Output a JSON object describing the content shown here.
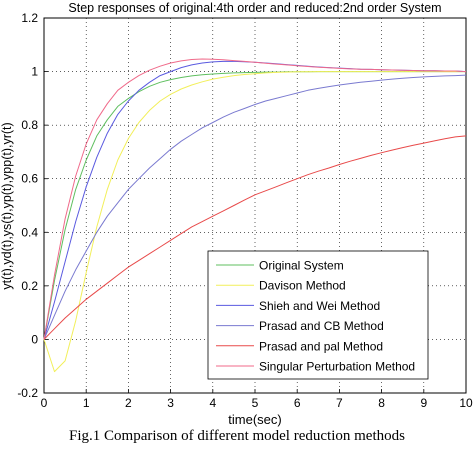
{
  "caption": "Fig.1 Comparison of different model reduction methods",
  "chart_data": {
    "type": "line",
    "title": "Step responses of original:4th order and reduced:2nd order System",
    "xlabel": "time(sec)",
    "ylabel": "yt(t),yd(t),ys(t),yp(t),ypp(t),yr(t)",
    "xlim": [
      0,
      10
    ],
    "ylim": [
      -0.2,
      1.2
    ],
    "xticks": [
      "0",
      "1",
      "2",
      "3",
      "4",
      "5",
      "6",
      "7",
      "8",
      "9",
      "10"
    ],
    "yticks": [
      "-0.2",
      "0",
      "0.2",
      "0.4",
      "0.6",
      "0.8",
      "1",
      "1.2"
    ],
    "grid": true,
    "legend_position": "bottom-right",
    "x": [
      0,
      0.25,
      0.5,
      0.75,
      1,
      1.25,
      1.5,
      1.75,
      2,
      2.25,
      2.5,
      2.75,
      3,
      3.25,
      3.5,
      3.75,
      4,
      4.25,
      4.5,
      4.75,
      5,
      5.25,
      5.5,
      5.75,
      6,
      6.25,
      6.5,
      6.75,
      7,
      7.25,
      7.5,
      7.75,
      8,
      8.25,
      8.5,
      8.75,
      9,
      9.25,
      9.5,
      9.75,
      10
    ],
    "series": [
      {
        "name": "Original System",
        "color": "#5fbf5f",
        "values": [
          0.0,
          0.22,
          0.41,
          0.56,
          0.67,
          0.76,
          0.82,
          0.87,
          0.9,
          0.925,
          0.945,
          0.96,
          0.97,
          0.978,
          0.984,
          0.988,
          0.991,
          0.993,
          0.995,
          0.996,
          0.997,
          0.998,
          0.998,
          0.999,
          0.999,
          0.999,
          1.0,
          1.0,
          1.0,
          1.0,
          1.0,
          1.0,
          1.0,
          1.0,
          1.0,
          1.0,
          1.0,
          1.0,
          1.0,
          1.0,
          1.0
        ]
      },
      {
        "name": "Davison Method",
        "color": "#f2ef5a",
        "values": [
          0.0,
          -0.12,
          -0.08,
          0.07,
          0.25,
          0.42,
          0.56,
          0.67,
          0.75,
          0.81,
          0.855,
          0.89,
          0.915,
          0.935,
          0.95,
          0.962,
          0.972,
          0.979,
          0.985,
          0.989,
          0.992,
          0.995,
          0.997,
          0.998,
          0.999,
          0.999,
          1.0,
          1.0,
          1.0,
          1.0,
          1.0,
          1.0,
          1.0,
          1.0,
          1.0,
          1.0,
          1.0,
          1.0,
          1.0,
          1.0,
          1.0
        ]
      },
      {
        "name": "Shieh and Wei Method",
        "color": "#5a5ae0",
        "values": [
          0.0,
          0.14,
          0.29,
          0.44,
          0.57,
          0.68,
          0.77,
          0.84,
          0.89,
          0.93,
          0.96,
          0.985,
          1.0,
          1.015,
          1.025,
          1.032,
          1.036,
          1.038,
          1.038,
          1.037,
          1.035,
          1.032,
          1.029,
          1.026,
          1.023,
          1.02,
          1.017,
          1.015,
          1.013,
          1.011,
          1.009,
          1.008,
          1.007,
          1.006,
          1.005,
          1.004,
          1.003,
          1.003,
          1.002,
          1.002,
          1.0
        ]
      },
      {
        "name": "Prasad and CB Method",
        "color": "#7a7ad0",
        "values": [
          0.0,
          0.09,
          0.18,
          0.26,
          0.33,
          0.4,
          0.46,
          0.51,
          0.56,
          0.6,
          0.64,
          0.675,
          0.71,
          0.74,
          0.765,
          0.79,
          0.81,
          0.83,
          0.848,
          0.862,
          0.877,
          0.89,
          0.9,
          0.91,
          0.92,
          0.93,
          0.937,
          0.944,
          0.95,
          0.955,
          0.96,
          0.964,
          0.968,
          0.972,
          0.975,
          0.978,
          0.98,
          0.982,
          0.984,
          0.985,
          0.987
        ]
      },
      {
        "name": "Prasad and pal Method",
        "color": "#e84a4a",
        "values": [
          0.0,
          0.04,
          0.08,
          0.115,
          0.15,
          0.18,
          0.21,
          0.24,
          0.27,
          0.295,
          0.32,
          0.345,
          0.37,
          0.395,
          0.42,
          0.44,
          0.46,
          0.48,
          0.5,
          0.52,
          0.54,
          0.555,
          0.57,
          0.585,
          0.6,
          0.615,
          0.628,
          0.64,
          0.653,
          0.665,
          0.676,
          0.687,
          0.697,
          0.707,
          0.716,
          0.725,
          0.733,
          0.741,
          0.749,
          0.756,
          0.76
        ]
      },
      {
        "name": "Singular Perturbation Method",
        "color": "#f06a8a",
        "values": [
          0.0,
          0.24,
          0.45,
          0.61,
          0.73,
          0.82,
          0.88,
          0.93,
          0.96,
          0.985,
          1.005,
          1.02,
          1.032,
          1.04,
          1.045,
          1.047,
          1.046,
          1.044,
          1.041,
          1.038,
          1.035,
          1.031,
          1.028,
          1.025,
          1.022,
          1.019,
          1.016,
          1.014,
          1.012,
          1.01,
          1.009,
          1.008,
          1.007,
          1.006,
          1.005,
          1.004,
          1.003,
          1.003,
          1.002,
          1.002,
          1.0
        ]
      }
    ]
  }
}
